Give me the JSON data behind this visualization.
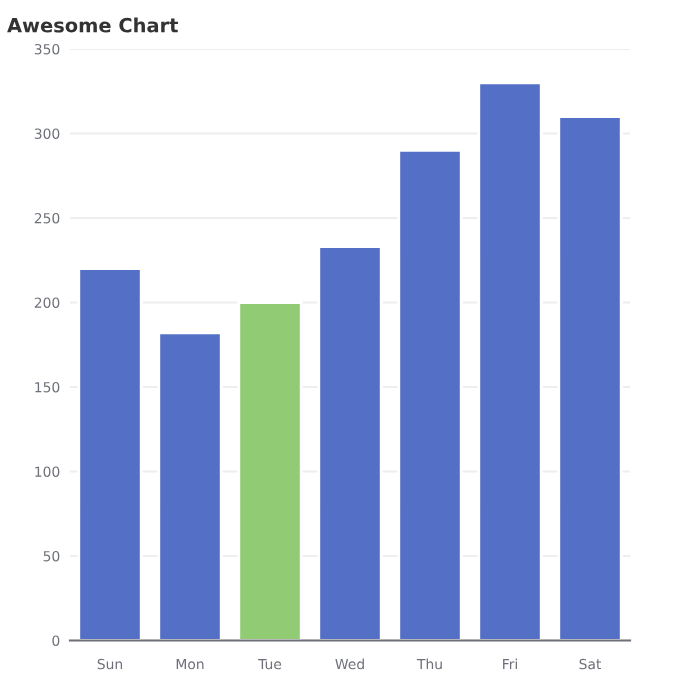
{
  "chart_data": {
    "type": "bar",
    "title": "Awesome Chart",
    "categories": [
      "Sun",
      "Mon",
      "Tue",
      "Wed",
      "Thu",
      "Fri",
      "Sat"
    ],
    "values": [
      220,
      182,
      200,
      233,
      290,
      330,
      310
    ],
    "colors": [
      "#5470c6",
      "#5470c6",
      "#91cc75",
      "#5470c6",
      "#5470c6",
      "#5470c6",
      "#5470c6"
    ],
    "ylim": [
      0,
      350
    ],
    "yticks": [
      0,
      50,
      100,
      150,
      200,
      250,
      300,
      350
    ],
    "grid": "y",
    "legend": false
  }
}
